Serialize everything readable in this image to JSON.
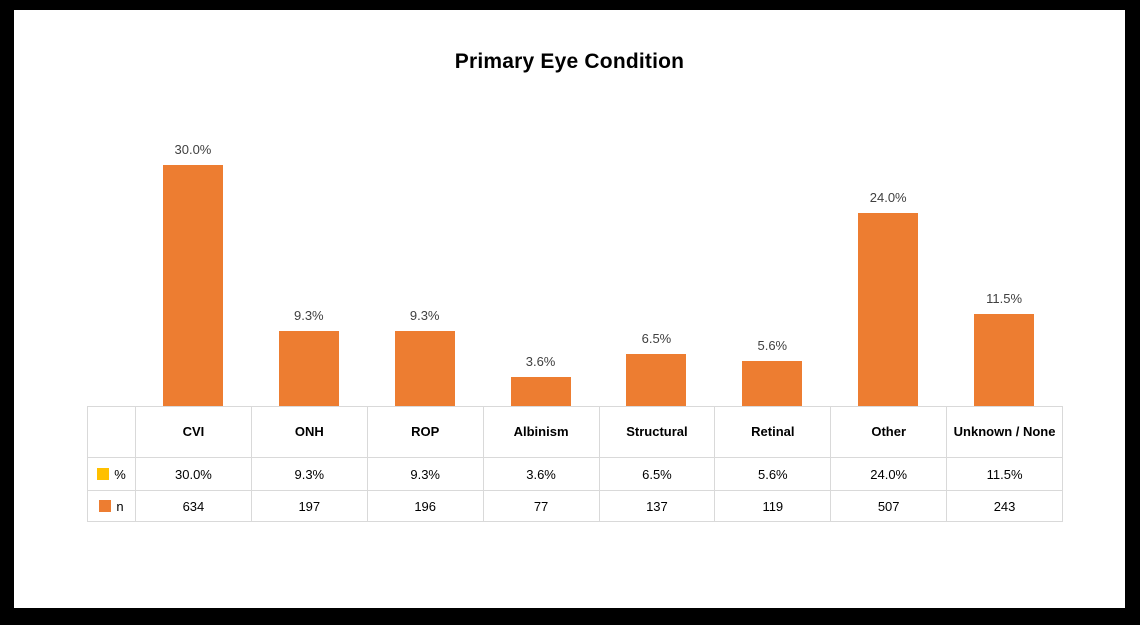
{
  "window": {
    "frame_color": "#000000",
    "card_background": "#ffffff"
  },
  "chart_data": {
    "type": "bar",
    "title": "Primary Eye Condition",
    "categories": [
      "CVI",
      "ONH",
      "ROP",
      "Albinism",
      "Structural",
      "Retinal",
      "Other",
      "Unknown / None"
    ],
    "series": [
      {
        "name": "%",
        "swatch_color": "#FFC000",
        "values": [
          30.0,
          9.3,
          9.3,
          3.6,
          6.5,
          5.6,
          24.0,
          11.5
        ],
        "display": [
          "30.0%",
          "9.3%",
          "9.3%",
          "3.6%",
          "6.5%",
          "5.6%",
          "24.0%",
          "11.5%"
        ]
      },
      {
        "name": "n",
        "swatch_color": "#ED7D31",
        "values": [
          634,
          197,
          196,
          77,
          137,
          119,
          507,
          243
        ],
        "display": [
          "634",
          "197",
          "196",
          "77",
          "137",
          "119",
          "507",
          "243"
        ]
      }
    ],
    "bar_color": "#ED7D31",
    "data_labels": [
      "30.0%",
      "9.3%",
      "9.3%",
      "3.6%",
      "6.5%",
      "5.6%",
      "24.0%",
      "11.5%"
    ],
    "data_label_color": "#404040",
    "ylim": [
      0,
      30
    ],
    "grid": false,
    "legend_position": "data-table-keys",
    "table_border_color": "#D9D9D9"
  }
}
